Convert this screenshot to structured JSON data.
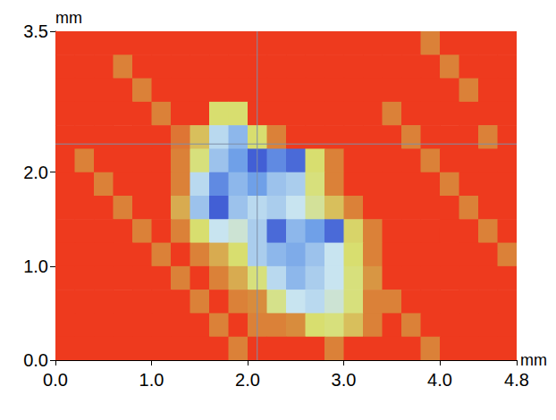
{
  "chart_data": {
    "type": "heatmap",
    "xlabel": "mm",
    "ylabel": "mm",
    "xlim": [
      0,
      4.8
    ],
    "ylim": [
      0,
      3.5
    ],
    "xticks": [
      {
        "value": 0,
        "label": "0.0"
      },
      {
        "value": 1,
        "label": "1.0"
      },
      {
        "value": 2,
        "label": "2.0"
      },
      {
        "value": 3,
        "label": "3.0"
      },
      {
        "value": 4,
        "label": "4.0"
      },
      4.8
    ],
    "yticks": [
      {
        "value": 0,
        "label": "0.0"
      },
      {
        "value": 1,
        "label": "1.0"
      },
      {
        "value": 2,
        "label": "2.0"
      },
      3.5
    ],
    "grid": false,
    "crosshair": {
      "x": 2.1,
      "y": 2.3
    },
    "zlim": [
      0,
      4
    ],
    "x": [
      0.1,
      0.3,
      0.5,
      0.7,
      0.9,
      1.1,
      1.3,
      1.5,
      1.7,
      1.9,
      2.1,
      2.3,
      2.5,
      2.7,
      2.9,
      3.1,
      3.3,
      3.5,
      3.7,
      3.9,
      4.1,
      4.3,
      4.5,
      4.7
    ],
    "y": [
      3.375,
      3.125,
      2.875,
      2.625,
      2.375,
      2.125,
      1.875,
      1.625,
      1.375,
      1.125,
      0.875,
      0.625,
      0.375,
      0.125
    ],
    "z": [
      [
        4,
        4,
        4,
        4,
        4,
        4,
        4,
        4,
        4,
        4,
        4,
        4,
        4,
        4,
        4,
        4,
        4,
        4,
        4,
        3.4,
        4,
        4,
        4,
        4
      ],
      [
        4,
        4,
        4,
        3.4,
        4,
        4,
        4,
        4,
        4,
        4,
        4,
        4,
        4,
        4,
        4,
        4,
        4,
        4,
        4,
        4,
        3.4,
        4,
        4,
        4
      ],
      [
        4,
        4,
        4,
        4,
        3.4,
        4,
        4,
        4,
        4,
        4,
        4,
        4,
        4,
        4,
        4,
        4,
        4,
        4,
        4,
        4,
        4,
        3.4,
        4,
        4
      ],
      [
        4,
        4,
        4,
        4,
        4,
        3.4,
        4,
        4,
        2.5,
        2.5,
        4,
        4,
        4,
        4,
        4,
        4,
        4,
        3.4,
        4,
        4,
        4,
        4,
        4,
        4
      ],
      [
        4,
        4,
        4,
        4,
        4,
        4,
        3.5,
        2.8,
        1.5,
        1.2,
        2.5,
        3.4,
        4,
        4,
        4,
        4,
        4,
        4,
        3.4,
        4,
        4,
        4,
        3.4,
        4
      ],
      [
        4,
        3.4,
        4,
        4,
        4,
        4,
        3.4,
        2.4,
        1.3,
        1.0,
        0.4,
        0.8,
        0.5,
        2.5,
        3.4,
        4,
        4,
        4,
        4,
        3.4,
        4,
        4,
        4,
        4
      ],
      [
        4,
        4,
        3.4,
        4,
        4,
        4,
        3.4,
        1.5,
        0.8,
        1.2,
        1.0,
        1.3,
        1.4,
        2.4,
        3.4,
        4,
        4,
        4,
        4,
        4,
        3.4,
        4,
        4,
        4
      ],
      [
        4,
        4,
        4,
        3.4,
        4,
        4,
        3.0,
        1.3,
        0.4,
        1.3,
        1.5,
        1.4,
        1.6,
        2.2,
        2.8,
        3.4,
        4,
        4,
        4,
        4,
        4,
        3.4,
        4,
        4
      ],
      [
        4,
        4,
        4,
        4,
        3.4,
        4,
        3.4,
        2.5,
        1.6,
        1.8,
        1.4,
        0.5,
        1.2,
        1.0,
        0.5,
        2.6,
        3.4,
        4,
        4,
        4,
        4,
        4,
        3.4,
        4
      ],
      [
        4,
        4,
        4,
        4,
        4,
        3.4,
        4,
        3.4,
        3.0,
        2.5,
        1.4,
        1.2,
        1.1,
        1.3,
        1.6,
        2.5,
        3.4,
        4,
        4,
        4,
        4,
        4,
        4,
        3.4
      ],
      [
        4,
        4,
        4,
        4,
        4,
        4,
        3.4,
        4,
        3.4,
        3.0,
        2.4,
        1.5,
        1.2,
        1.4,
        1.6,
        2.4,
        3.2,
        4,
        4,
        4,
        4,
        4,
        4,
        4
      ],
      [
        4,
        4,
        4,
        4,
        4,
        4,
        4,
        3.4,
        4,
        3.4,
        3.3,
        2.3,
        1.6,
        1.5,
        1.8,
        2.4,
        3.4,
        3.4,
        4,
        4,
        4,
        4,
        4,
        4
      ],
      [
        4,
        4,
        4,
        4,
        4,
        4,
        4,
        4,
        3.4,
        4,
        3.4,
        3.4,
        3.3,
        2.5,
        2.4,
        2.8,
        3.4,
        4,
        3.4,
        4,
        4,
        4,
        4,
        4
      ],
      [
        4,
        4,
        4,
        4,
        4,
        4,
        4,
        4,
        4,
        3.4,
        4,
        4,
        4,
        4,
        3.4,
        4,
        4,
        4,
        4,
        3.4,
        4,
        4,
        4,
        4
      ]
    ]
  }
}
